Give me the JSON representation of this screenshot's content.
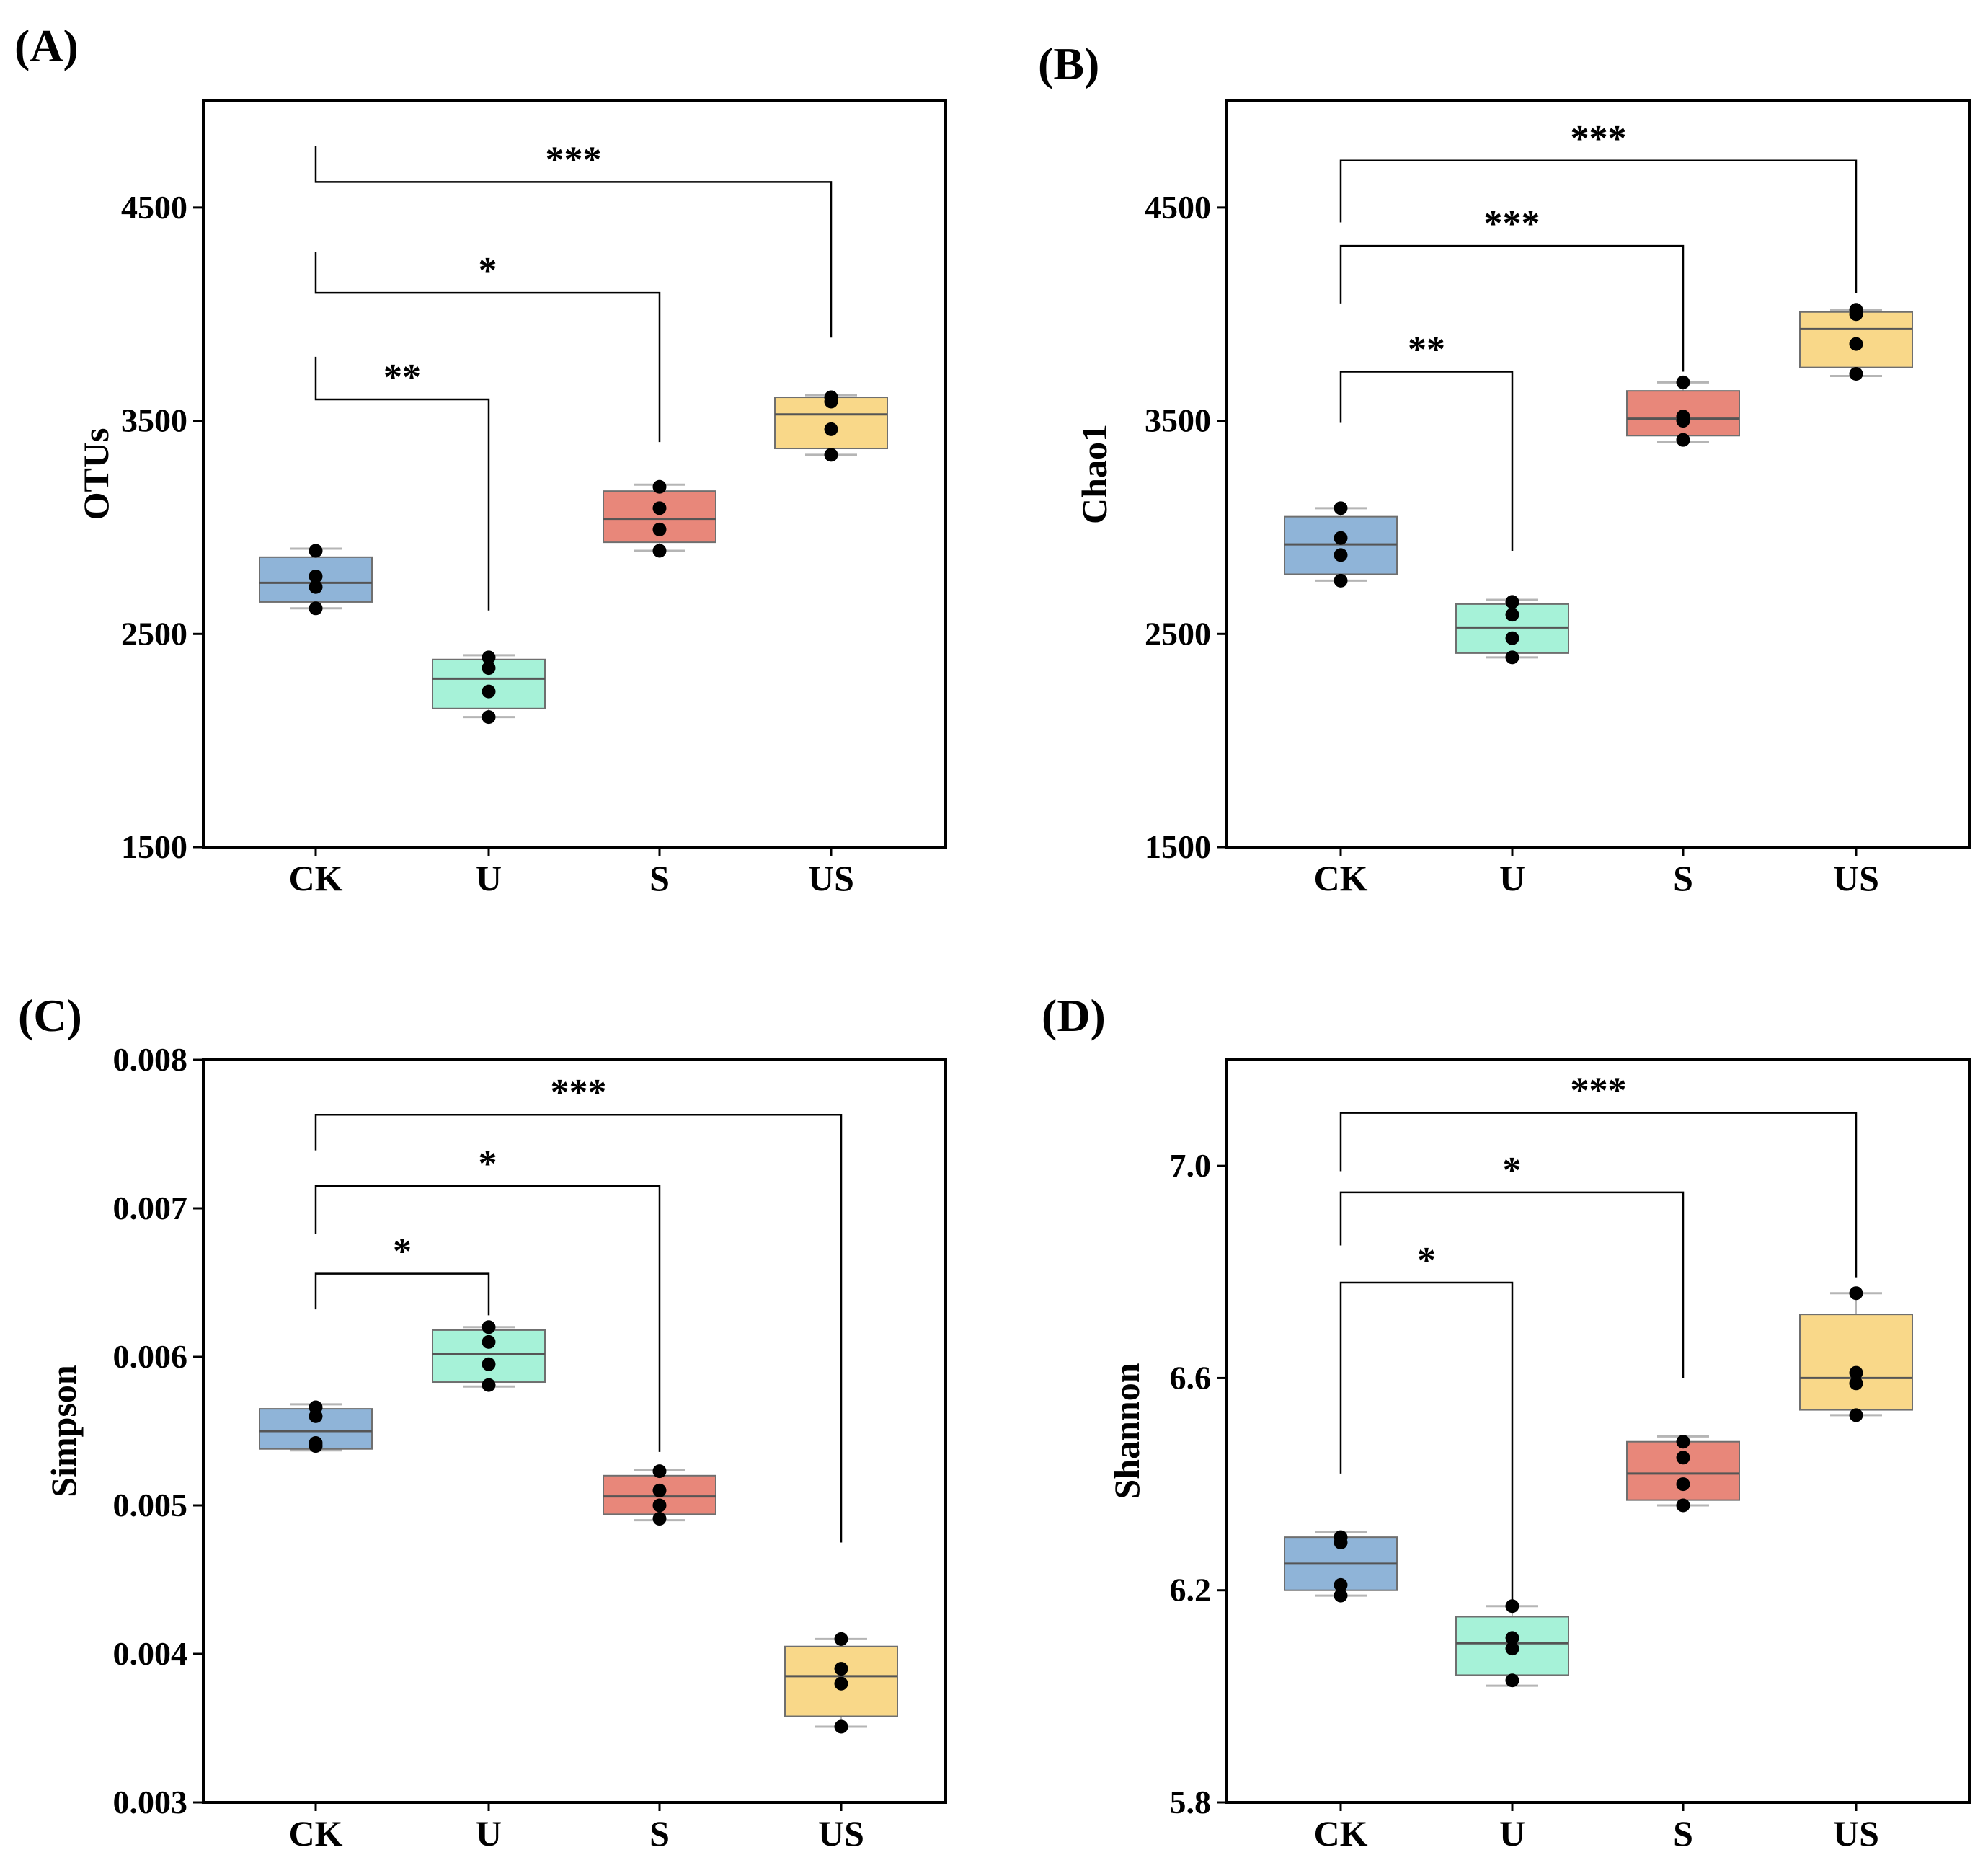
{
  "chart_data": [
    {
      "panel": "(A)",
      "type": "box",
      "ylabel": "OTUs",
      "categories": [
        "CK",
        "U",
        "S",
        "US"
      ],
      "ylim": [
        1500,
        5000
      ],
      "yticks": [
        "1500",
        "2500",
        "3500",
        "4500"
      ],
      "ytick_values": [
        1500,
        2500,
        3500,
        4500
      ],
      "colors": [
        "#8fb4d8",
        "#a6f2d8",
        "#e8877a",
        "#f9d889"
      ],
      "boxes": [
        {
          "q1": 2650,
          "median": 2740,
          "q3": 2860,
          "whisker_low": 2620,
          "whisker_high": 2900,
          "points": [
            2620,
            2720,
            2770,
            2890
          ]
        },
        {
          "q1": 2150,
          "median": 2290,
          "q3": 2380,
          "whisker_low": 2110,
          "whisker_high": 2400,
          "points": [
            2110,
            2230,
            2340,
            2390
          ]
        },
        {
          "q1": 2930,
          "median": 3040,
          "q3": 3170,
          "whisker_low": 2890,
          "whisker_high": 3200,
          "points": [
            2890,
            2990,
            3090,
            3190
          ]
        },
        {
          "q1": 3370,
          "median": 3530,
          "q3": 3610,
          "whisker_low": 3340,
          "whisker_high": 3620,
          "points": [
            3340,
            3460,
            3590,
            3610
          ]
        }
      ],
      "brackets": [
        {
          "from": 0,
          "to": 1,
          "label": "**",
          "y": 3600,
          "left_drop": 3800,
          "right_drop": 2610
        },
        {
          "from": 0,
          "to": 2,
          "label": "*",
          "y": 4100,
          "left_drop": 4290,
          "right_drop": 3400
        },
        {
          "from": 0,
          "to": 3,
          "label": "***",
          "y": 4620,
          "left_drop": 4790,
          "right_drop": 3890
        }
      ]
    },
    {
      "panel": "(B)",
      "type": "box",
      "ylabel": "Chao1",
      "categories": [
        "CK",
        "U",
        "S",
        "US"
      ],
      "ylim": [
        1500,
        5000
      ],
      "yticks": [
        "1500",
        "2500",
        "3500",
        "4500"
      ],
      "ytick_values": [
        1500,
        2500,
        3500,
        4500
      ],
      "colors": [
        "#8fb4d8",
        "#a6f2d8",
        "#e8877a",
        "#f9d889"
      ],
      "boxes": [
        {
          "q1": 2780,
          "median": 2920,
          "q3": 3050,
          "whisker_low": 2750,
          "whisker_high": 3090,
          "points": [
            2750,
            2870,
            2950,
            3090
          ]
        },
        {
          "q1": 2410,
          "median": 2530,
          "q3": 2640,
          "whisker_low": 2390,
          "whisker_high": 2660,
          "points": [
            2390,
            2480,
            2590,
            2650
          ]
        },
        {
          "q1": 3430,
          "median": 3510,
          "q3": 3640,
          "whisker_low": 3400,
          "whisker_high": 3680,
          "points": [
            3410,
            3500,
            3520,
            3680
          ]
        },
        {
          "q1": 3750,
          "median": 3930,
          "q3": 4010,
          "whisker_low": 3710,
          "whisker_high": 4020,
          "points": [
            3720,
            3860,
            4000,
            4020
          ]
        }
      ],
      "brackets": [
        {
          "from": 0,
          "to": 1,
          "label": "**",
          "y": 3730,
          "left_drop": 3490,
          "right_drop": 2890
        },
        {
          "from": 0,
          "to": 2,
          "label": "***",
          "y": 4320,
          "left_drop": 4050,
          "right_drop": 3730
        },
        {
          "from": 0,
          "to": 3,
          "label": "***",
          "y": 4720,
          "left_drop": 4430,
          "right_drop": 4100
        }
      ]
    },
    {
      "panel": "(C)",
      "type": "box",
      "ylabel": "Simpson",
      "categories": [
        "CK",
        "U",
        "S",
        "US"
      ],
      "ylim": [
        0.003,
        0.008
      ],
      "yticks": [
        "0.003",
        "0.004",
        "0.005",
        "0.006",
        "0.007",
        "0.008"
      ],
      "ytick_values": [
        0.003,
        0.004,
        0.005,
        0.006,
        0.007,
        0.008
      ],
      "colors": [
        "#8fb4d8",
        "#a6f2d8",
        "#e8877a",
        "#f9d889"
      ],
      "boxes": [
        {
          "q1": 0.00538,
          "median": 0.0055,
          "q3": 0.00565,
          "whisker_low": 0.00537,
          "whisker_high": 0.00568,
          "points": [
            0.0054,
            0.00542,
            0.0056,
            0.00566
          ]
        },
        {
          "q1": 0.00583,
          "median": 0.00602,
          "q3": 0.00618,
          "whisker_low": 0.0058,
          "whisker_high": 0.0062,
          "points": [
            0.00581,
            0.00595,
            0.0061,
            0.0062
          ]
        },
        {
          "q1": 0.00494,
          "median": 0.00506,
          "q3": 0.0052,
          "whisker_low": 0.0049,
          "whisker_high": 0.00524,
          "points": [
            0.00491,
            0.005,
            0.0051,
            0.00523
          ]
        },
        {
          "q1": 0.00358,
          "median": 0.00385,
          "q3": 0.00405,
          "whisker_low": 0.00351,
          "whisker_high": 0.0041,
          "points": [
            0.00351,
            0.0038,
            0.0039,
            0.0041
          ]
        }
      ],
      "brackets": [
        {
          "from": 0,
          "to": 1,
          "label": "*",
          "y": 0.00656,
          "left_drop": 0.00632,
          "right_drop": 0.00628
        },
        {
          "from": 0,
          "to": 2,
          "label": "*",
          "y": 0.00715,
          "left_drop": 0.00683,
          "right_drop": 0.00536
        },
        {
          "from": 0,
          "to": 3,
          "label": "***",
          "y": 0.00763,
          "left_drop": 0.00739,
          "right_drop": 0.00475
        }
      ]
    },
    {
      "panel": "(D)",
      "type": "box",
      "ylabel": "Shannon",
      "categories": [
        "CK",
        "U",
        "S",
        "US"
      ],
      "ylim": [
        5.8,
        7.2
      ],
      "yticks": [
        "5.8",
        "6.2",
        "6.6",
        "7.0"
      ],
      "ytick_values": [
        5.8,
        6.2,
        6.6,
        7.0
      ],
      "colors": [
        "#8fb4d8",
        "#a6f2d8",
        "#e8877a",
        "#f9d889"
      ],
      "boxes": [
        {
          "q1": 6.2,
          "median": 6.25,
          "q3": 6.3,
          "whisker_low": 6.19,
          "whisker_high": 6.31,
          "points": [
            6.19,
            6.21,
            6.29,
            6.3
          ]
        },
        {
          "q1": 6.04,
          "median": 6.1,
          "q3": 6.15,
          "whisker_low": 6.02,
          "whisker_high": 6.17,
          "points": [
            6.03,
            6.09,
            6.11,
            6.17
          ]
        },
        {
          "q1": 6.37,
          "median": 6.42,
          "q3": 6.48,
          "whisker_low": 6.36,
          "whisker_high": 6.49,
          "points": [
            6.36,
            6.4,
            6.45,
            6.48
          ]
        },
        {
          "q1": 6.54,
          "median": 6.6,
          "q3": 6.72,
          "whisker_low": 6.53,
          "whisker_high": 6.76,
          "points": [
            6.53,
            6.59,
            6.61,
            6.76
          ]
        }
      ],
      "brackets": [
        {
          "from": 0,
          "to": 1,
          "label": "*",
          "y": 6.78,
          "left_drop": 6.42,
          "right_drop": 6.18
        },
        {
          "from": 0,
          "to": 2,
          "label": "*",
          "y": 6.95,
          "left_drop": 6.85,
          "right_drop": 6.6
        },
        {
          "from": 0,
          "to": 3,
          "label": "***",
          "y": 7.1,
          "left_drop": 6.99,
          "right_drop": 6.79
        }
      ]
    }
  ]
}
